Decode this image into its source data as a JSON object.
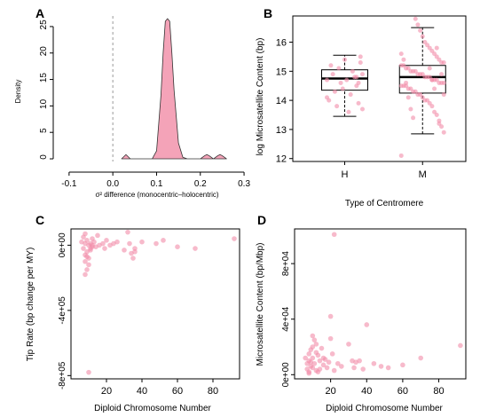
{
  "colors": {
    "pink": "#f28ca8",
    "pink_fill": "#f4a3b8",
    "axis": "#000000"
  },
  "chart_data": [
    {
      "panel": "A",
      "type": "area",
      "ylabel": "Density",
      "xlabel": "σ² difference (monocentric–holocentric)",
      "xlim": [
        -0.12,
        0.31
      ],
      "ylim": [
        -0.5,
        27
      ],
      "xticks": [
        "-0.1",
        "0.0",
        "0.1",
        "0.2",
        "0.3"
      ],
      "yticks": [
        "0",
        "5",
        "10",
        "15",
        "20",
        "25"
      ],
      "reference_line_x": 0.0,
      "x": [
        0.02,
        0.03,
        0.04,
        0.05,
        0.06,
        0.07,
        0.08,
        0.09,
        0.1,
        0.11,
        0.115,
        0.12,
        0.125,
        0.13,
        0.135,
        0.14,
        0.15,
        0.16,
        0.17,
        0.18,
        0.19,
        0.2,
        0.21,
        0.215,
        0.22,
        0.23,
        0.24,
        0.245,
        0.25,
        0.26
      ],
      "y": [
        0,
        0.8,
        0,
        0,
        0,
        0,
        0,
        0,
        1.5,
        12,
        20,
        26,
        26.5,
        26,
        20,
        13,
        3,
        0.3,
        0,
        0,
        0,
        0,
        0.6,
        0.8,
        0.6,
        0,
        0.6,
        0.8,
        0.6,
        0
      ]
    },
    {
      "panel": "B",
      "type": "box",
      "ylabel": "log Microsatellite Content (bp)",
      "xlabel": "Type of Centromere",
      "categories": [
        "H",
        "M"
      ],
      "ylim": [
        11.9,
        16.9
      ],
      "yticks": [
        "12",
        "13",
        "14",
        "15",
        "16"
      ],
      "boxes": [
        {
          "category": "H",
          "whisker_low": 13.45,
          "q1": 14.35,
          "median": 14.75,
          "q3": 15.05,
          "whisker_high": 15.55
        },
        {
          "category": "M",
          "whisker_low": 12.85,
          "q1": 14.25,
          "median": 14.8,
          "q3": 15.2,
          "whisker_high": 16.5
        }
      ],
      "points_H": [
        14.1,
        14.9,
        15.3,
        13.9,
        14.5,
        14.8,
        15.0,
        14.2,
        13.6,
        14.7,
        15.4,
        14.4,
        14.6,
        15.1,
        13.8,
        14.3,
        14.9,
        15.2,
        14.0,
        14.7,
        13.7,
        15.5,
        14.6,
        14.8
      ],
      "points_M": [
        12.1,
        12.9,
        13.1,
        13.3,
        13.5,
        13.6,
        13.8,
        13.9,
        14.0,
        14.0,
        14.1,
        14.2,
        14.2,
        14.3,
        14.3,
        14.4,
        14.4,
        14.5,
        14.5,
        14.5,
        14.6,
        14.6,
        14.6,
        14.7,
        14.7,
        14.7,
        14.8,
        14.8,
        14.8,
        14.9,
        14.9,
        14.9,
        15.0,
        15.0,
        15.0,
        15.1,
        15.1,
        15.2,
        15.2,
        15.3,
        15.3,
        15.4,
        15.5,
        15.6,
        15.7,
        15.8,
        15.9,
        16.0,
        16.2,
        16.4,
        16.6,
        16.8,
        13.4,
        13.7,
        14.1,
        14.6,
        15.4,
        15.6,
        14.2,
        14.9,
        13.2,
        15.8,
        14.4,
        14.7,
        15.1
      ]
    },
    {
      "panel": "C",
      "type": "scatter",
      "ylabel": "Tip Rate (bp change per MY)",
      "xlabel": "Diploid Chromosome Number",
      "xlim": [
        0,
        95
      ],
      "ylim": [
        -820000,
        100000
      ],
      "xticks": [
        "20",
        "40",
        "60",
        "80"
      ],
      "xtick_values": [
        20,
        40,
        60,
        80
      ],
      "yticks": [
        "0e+00",
        "-4e+05",
        "-8e+05"
      ],
      "ytick_values": [
        0,
        -400000,
        -800000
      ],
      "x": [
        6,
        7,
        7,
        8,
        8,
        8,
        9,
        9,
        9,
        10,
        10,
        10,
        11,
        11,
        12,
        12,
        13,
        14,
        15,
        16,
        18,
        19,
        20,
        22,
        24,
        26,
        30,
        32,
        33,
        34,
        36,
        40,
        48,
        52,
        60,
        70,
        92,
        10,
        8,
        9,
        12,
        35,
        36,
        8,
        11
      ],
      "y": [
        20000,
        50000,
        -20000,
        10000,
        -60000,
        -100000,
        30000,
        -40000,
        -150000,
        0,
        -80000,
        -120000,
        10000,
        -30000,
        40000,
        -10000,
        20000,
        -10000,
        60000,
        0,
        10000,
        -20000,
        30000,
        0,
        10000,
        20000,
        -30000,
        80000,
        10000,
        -50000,
        -20000,
        20000,
        10000,
        30000,
        -10000,
        -20000,
        40000,
        -780000,
        -180000,
        -70000,
        0,
        -80000,
        -40000,
        70000,
        -20000
      ]
    },
    {
      "panel": "D",
      "type": "scatter",
      "ylabel": "Microsatellite Content (bp/Mbp)",
      "xlabel": "Diploid Chromosome Number",
      "xlim": [
        0,
        95
      ],
      "ylim": [
        -3000,
        105000
      ],
      "xticks": [
        "20",
        "40",
        "60",
        "80"
      ],
      "xtick_values": [
        20,
        40,
        60,
        80
      ],
      "yticks": [
        "0e+00",
        "4e+04",
        "8e+04"
      ],
      "ytick_values": [
        0,
        40000,
        80000
      ],
      "x": [
        6,
        7,
        7,
        8,
        8,
        8,
        9,
        9,
        9,
        10,
        10,
        10,
        11,
        11,
        12,
        12,
        12,
        13,
        14,
        14,
        15,
        16,
        16,
        18,
        19,
        20,
        20,
        21,
        22,
        24,
        26,
        30,
        32,
        33,
        34,
        36,
        38,
        40,
        44,
        48,
        52,
        60,
        70,
        92,
        8,
        10,
        13,
        17,
        22
      ],
      "y": [
        12000,
        8000,
        4000,
        15000,
        10000,
        2000,
        18000,
        6000,
        9000,
        20000,
        12000,
        5000,
        25000,
        8000,
        16000,
        22000,
        3000,
        14000,
        10000,
        4000,
        19000,
        7000,
        12000,
        5000,
        9000,
        42000,
        26000,
        15000,
        101000,
        8000,
        6000,
        22000,
        10000,
        5000,
        9000,
        10000,
        4000,
        36000,
        8000,
        6000,
        5000,
        7000,
        12000,
        21000,
        1000,
        28000,
        2000,
        11000,
        3000
      ]
    }
  ]
}
